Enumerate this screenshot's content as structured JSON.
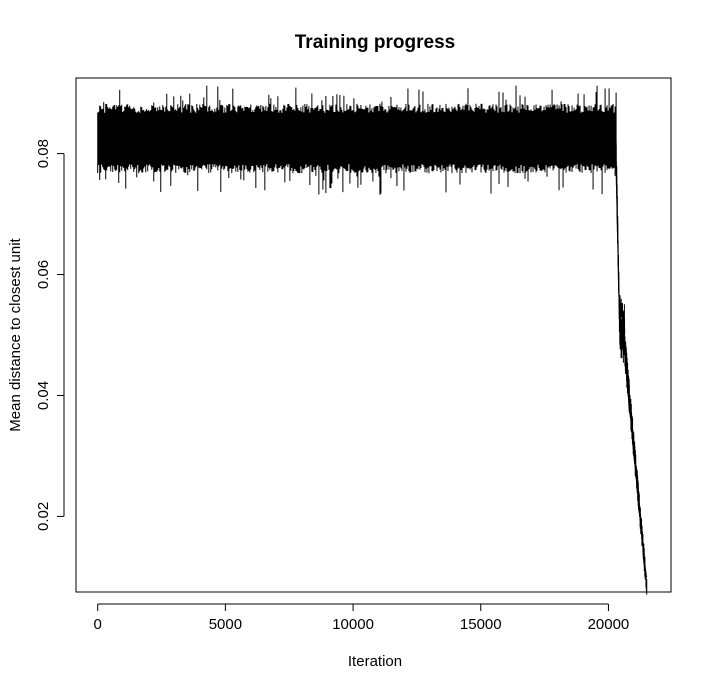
{
  "chart_data": {
    "type": "line",
    "title": "Training progress",
    "xlabel": "Iteration",
    "ylabel": "Mean distance to closest unit",
    "xlim": [
      -850,
      22450
    ],
    "ylim": [
      0.0075,
      0.0925
    ],
    "x_ticks": [
      0,
      5000,
      10000,
      15000,
      20000
    ],
    "x_tick_labels": [
      "0",
      "5000",
      "10000",
      "15000",
      "20000"
    ],
    "y_ticks": [
      0.02,
      0.04,
      0.06,
      0.08
    ],
    "y_tick_labels": [
      "0.02",
      "0.04",
      "0.06",
      "0.08"
    ],
    "grid": false,
    "legend": "none",
    "colors": {
      "series": "#000000",
      "axes": "#000000",
      "background": "#ffffff"
    },
    "series": [
      {
        "x": [
          0,
          250,
          500,
          750,
          1000,
          1250,
          1500,
          1750,
          2000,
          2250,
          2500,
          2750,
          3000,
          3250,
          3500,
          3750,
          4000,
          4250,
          4500,
          4750,
          5000,
          5250,
          5500,
          5750,
          6000,
          6250,
          6500,
          6750,
          7000,
          7250,
          7500,
          7750,
          8000,
          8250,
          8500,
          8750,
          9000,
          9250,
          9500,
          9750,
          10000,
          10250,
          10500,
          10750,
          11000,
          11250,
          11500,
          11750,
          12000,
          12250,
          12500,
          12750,
          13000,
          13250,
          13500,
          13750,
          14000,
          14250,
          14500,
          14750,
          15000,
          15250,
          15500,
          15750,
          16000,
          16250,
          16500,
          16750,
          17000,
          17250,
          17500,
          17750,
          18000,
          18250,
          18500,
          18750,
          19000,
          19250,
          19500,
          19750,
          20000,
          20250,
          20300,
          20350,
          20400,
          20450,
          20500,
          20550,
          20600,
          20650,
          20700,
          20750,
          20800,
          20850,
          20900,
          20950,
          21000,
          21050,
          21100,
          21150,
          21200,
          21250,
          21300,
          21350,
          21400,
          21450,
          21500
        ],
        "y": [
          0.0825,
          0.0818,
          0.0831,
          0.0822,
          0.0827,
          0.0816,
          0.0829,
          0.0823,
          0.0819,
          0.0832,
          0.0826,
          0.0817,
          0.0824,
          0.083,
          0.0821,
          0.0825,
          0.0818,
          0.0828,
          0.0823,
          0.082,
          0.0827,
          0.0822,
          0.0816,
          0.0829,
          0.0824,
          0.0819,
          0.0826,
          0.0821,
          0.083,
          0.0823,
          0.0818,
          0.0825,
          0.0822,
          0.0828,
          0.0817,
          0.0824,
          0.082,
          0.0827,
          0.0821,
          0.0826,
          0.0819,
          0.0823,
          0.0829,
          0.0822,
          0.0818,
          0.0825,
          0.082,
          0.0827,
          0.0823,
          0.0816,
          0.0824,
          0.0829,
          0.0821,
          0.0826,
          0.0819,
          0.0823,
          0.0828,
          0.0822,
          0.0817,
          0.0825,
          0.0821,
          0.0827,
          0.0823,
          0.0818,
          0.0826,
          0.082,
          0.0824,
          0.0829,
          0.0822,
          0.0817,
          0.0825,
          0.0821,
          0.0828,
          0.0823,
          0.0819,
          0.0826,
          0.082,
          0.0824,
          0.0818,
          0.0827,
          0.0822,
          0.0825,
          0.078,
          0.068,
          0.058,
          0.051,
          0.05,
          0.052,
          0.0505,
          0.047,
          0.044,
          0.041,
          0.039,
          0.037,
          0.035,
          0.033,
          0.03,
          0.028,
          0.026,
          0.024,
          0.022,
          0.02,
          0.018,
          0.015,
          0.012,
          0.0105,
          0.01
        ],
        "band": {
          "start": 0,
          "end": 20300,
          "lower": 0.0775,
          "upper": 0.0875,
          "spike_min": 0.073,
          "spike_max": 0.0915
        }
      }
    ]
  }
}
